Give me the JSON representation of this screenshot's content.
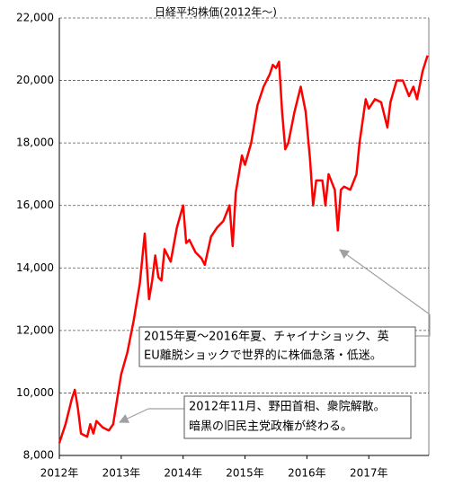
{
  "chart_data": {
    "type": "line",
    "title": "日経平均株価(2012年～)",
    "xlim": [
      2012,
      2017.97
    ],
    "xticks": [
      {
        "value": 2012,
        "label": "2012年"
      },
      {
        "value": 2013,
        "label": "2013年"
      },
      {
        "value": 2014,
        "label": "2014年"
      },
      {
        "value": 2015,
        "label": "2015年"
      },
      {
        "value": 2016,
        "label": "2016年"
      },
      {
        "value": 2017,
        "label": "2017年"
      }
    ],
    "ylim": [
      8000,
      22000
    ],
    "yticks": [
      {
        "value": 8000,
        "label": "8,000"
      },
      {
        "value": 10000,
        "label": "10,000"
      },
      {
        "value": 12000,
        "label": "12,000"
      },
      {
        "value": 14000,
        "label": "14,000"
      },
      {
        "value": 16000,
        "label": "16,000"
      },
      {
        "value": 18000,
        "label": "18,000"
      },
      {
        "value": 20000,
        "label": "20,000"
      },
      {
        "value": 22000,
        "label": "22,000"
      }
    ],
    "grid": true,
    "series": [
      {
        "color": "#ff0000",
        "x": [
          2012.0,
          2012.1,
          2012.2,
          2012.25,
          2012.3,
          2012.35,
          2012.45,
          2012.5,
          2012.55,
          2012.6,
          2012.7,
          2012.8,
          2012.87,
          2012.95,
          2013.0,
          2013.1,
          2013.2,
          2013.3,
          2013.38,
          2013.45,
          2013.5,
          2013.55,
          2013.6,
          2013.65,
          2013.7,
          2013.8,
          2013.9,
          2014.0,
          2014.05,
          2014.1,
          2014.2,
          2014.3,
          2014.35,
          2014.45,
          2014.55,
          2014.65,
          2014.75,
          2014.8,
          2014.85,
          2014.95,
          2015.0,
          2015.1,
          2015.2,
          2015.3,
          2015.4,
          2015.45,
          2015.5,
          2015.55,
          2015.6,
          2015.65,
          2015.7,
          2015.8,
          2015.9,
          2015.98,
          2016.05,
          2016.1,
          2016.15,
          2016.25,
          2016.3,
          2016.35,
          2016.45,
          2016.5,
          2016.55,
          2016.6,
          2016.7,
          2016.8,
          2016.85,
          2016.95,
          2017.0,
          2017.1,
          2017.2,
          2017.3,
          2017.35,
          2017.45,
          2017.55,
          2017.65,
          2017.72,
          2017.78,
          2017.87,
          2017.95
        ],
        "values": [
          8400,
          9000,
          9800,
          10100,
          9500,
          8700,
          8600,
          9000,
          8700,
          9100,
          8900,
          8800,
          9000,
          10000,
          10600,
          11300,
          12300,
          13500,
          15100,
          13000,
          13600,
          14400,
          13700,
          13600,
          14600,
          14200,
          15300,
          16000,
          14800,
          14900,
          14500,
          14300,
          14100,
          15000,
          15300,
          15500,
          16000,
          14700,
          16400,
          17600,
          17300,
          18000,
          19200,
          19800,
          20200,
          20500,
          20400,
          20600,
          19000,
          17800,
          18000,
          19000,
          19800,
          19000,
          17500,
          16000,
          16800,
          16800,
          16000,
          17000,
          16500,
          15200,
          16500,
          16600,
          16500,
          17000,
          18000,
          19400,
          19100,
          19400,
          19300,
          18500,
          19300,
          20000,
          20000,
          19500,
          19800,
          19400,
          20300,
          20800
        ]
      }
    ],
    "annotations": [
      {
        "lines": [
          "2015年夏～2016年夏、チャイナショック、英",
          "EU離脱ショックで世界的に株価急落・低迷。"
        ]
      },
      {
        "lines": [
          "2012年11月、野田首相、衆院解散。",
          "暗黒の旧民主党政権が終わる。"
        ]
      }
    ]
  }
}
